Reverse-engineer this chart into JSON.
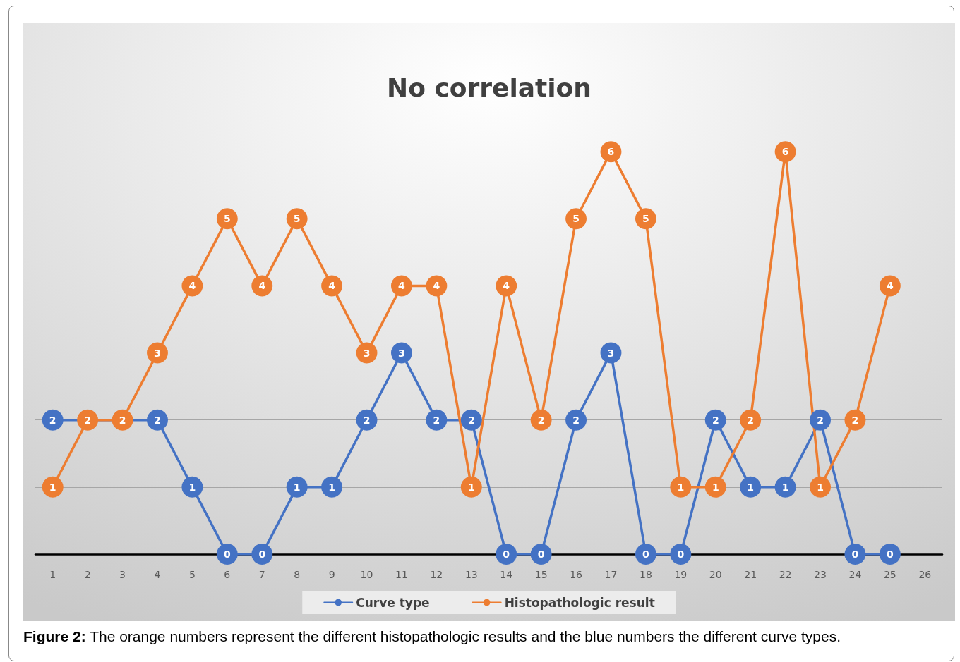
{
  "chart_data": {
    "type": "line",
    "title": "No correlation",
    "categories": [
      "1",
      "2",
      "3",
      "4",
      "5",
      "6",
      "7",
      "8",
      "9",
      "10",
      "11",
      "12",
      "13",
      "14",
      "15",
      "16",
      "17",
      "18",
      "19",
      "20",
      "21",
      "22",
      "23",
      "24",
      "25",
      "26"
    ],
    "series": [
      {
        "name": "Curve type",
        "color": "#4472c4",
        "values": [
          2,
          null,
          null,
          2,
          1,
          0,
          0,
          1,
          1,
          2,
          3,
          2,
          2,
          0,
          0,
          2,
          3,
          0,
          0,
          2,
          1,
          1,
          2,
          0,
          0,
          null
        ]
      },
      {
        "name": "Histopathologic result",
        "color": "#ed7d31",
        "values": [
          1,
          2,
          2,
          3,
          4,
          5,
          4,
          5,
          4,
          3,
          4,
          4,
          1,
          4,
          2,
          5,
          6,
          5,
          1,
          1,
          2,
          6,
          1,
          2,
          4,
          null
        ]
      }
    ],
    "ylim": [
      0,
      7
    ],
    "yticks": [
      {
        "value": 0,
        "label": null
      },
      {
        "value": 1,
        "label": null
      },
      {
        "value": 2,
        "label": null
      },
      {
        "value": 3,
        "label": null
      },
      {
        "value": 4,
        "label": null
      },
      {
        "value": 5,
        "label": null
      },
      {
        "value": 6,
        "label": null
      },
      {
        "value": 7,
        "label": null
      }
    ],
    "tick_labels": "x",
    "grid": "y",
    "legend": "bottom",
    "marker": "circle",
    "line_style": "solid",
    "data_labels": true,
    "annotations": [
      "Figure 2: The orange numbers represent the different histopathologic results and the blue numbers the different curve types."
    ]
  }
}
